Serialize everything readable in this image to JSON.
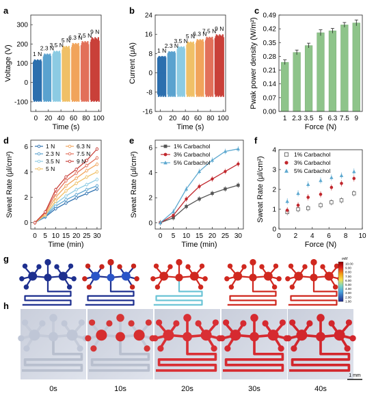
{
  "panel_letters": {
    "a": "a",
    "b": "b",
    "c": "c",
    "d": "d",
    "e": "e",
    "f": "f",
    "g": "g",
    "h": "h"
  },
  "force_labels": [
    "1 N",
    "2.3 N",
    "3.5 N",
    "5 N",
    "6.3 N",
    "7.5 N",
    "9 N"
  ],
  "force_colors": [
    "#2c6fae",
    "#5aa2cf",
    "#8ccbe3",
    "#f0c067",
    "#f1a45b",
    "#e2705a",
    "#c94039"
  ],
  "time_labels": [
    "0s",
    "10s",
    "20s",
    "30s",
    "40s"
  ],
  "scale_bar_label": "1 mm",
  "colorbar": {
    "unit": "mM",
    "ticks": [
      "10.00",
      "9.00",
      "8.00",
      "7.00",
      "6.00",
      "5.00",
      "4.00",
      "3.00",
      "2.00",
      "1.00"
    ]
  },
  "chart_data": [
    {
      "id": "a",
      "type": "bar",
      "title": "",
      "xlabel": "Time (s)",
      "ylabel": "Voltage (V)",
      "xlim": [
        -8,
        104
      ],
      "ylim": [
        -150,
        350
      ],
      "xticks": [
        0,
        20,
        40,
        60,
        80,
        100
      ],
      "yticks": [
        -100,
        0,
        100,
        200,
        300
      ],
      "segments": [
        {
          "label": "1 N",
          "x": [
            -4,
            9
          ],
          "peak": 120,
          "min": -100
        },
        {
          "label": "2.3 N",
          "x": [
            12,
            24
          ],
          "peak": 150,
          "min": -100
        },
        {
          "label": "3.5 N",
          "x": [
            27,
            39
          ],
          "peak": 165,
          "min": -100
        },
        {
          "label": "5 N",
          "x": [
            42,
            54
          ],
          "peak": 190,
          "min": -100
        },
        {
          "label": "6.3 N",
          "x": [
            57,
            69
          ],
          "peak": 205,
          "min": -100
        },
        {
          "label": "7.5 N",
          "x": [
            72,
            84
          ],
          "peak": 215,
          "min": -100
        },
        {
          "label": "9 N",
          "x": [
            87,
            101
          ],
          "peak": 235,
          "min": -100
        }
      ]
    },
    {
      "id": "b",
      "type": "bar",
      "title": "",
      "xlabel": "Time (s)",
      "ylabel": "Current (μA)",
      "xlim": [
        -8,
        104
      ],
      "ylim": [
        -16,
        24
      ],
      "xticks": [
        0,
        20,
        40,
        60,
        80,
        100
      ],
      "yticks": [
        -16,
        -8,
        0,
        8,
        16,
        24
      ],
      "segments": [
        {
          "label": "1 N",
          "x": [
            -4,
            9
          ],
          "peak": 7,
          "min": -10
        },
        {
          "label": "2.3 N",
          "x": [
            12,
            24
          ],
          "peak": 9,
          "min": -10
        },
        {
          "label": "3.5 N",
          "x": [
            27,
            39
          ],
          "peak": 11,
          "min": -10
        },
        {
          "label": "5 N",
          "x": [
            42,
            54
          ],
          "peak": 13,
          "min": -10
        },
        {
          "label": "6.3 N",
          "x": [
            57,
            69
          ],
          "peak": 14,
          "min": -10
        },
        {
          "label": "7.5 N",
          "x": [
            72,
            84
          ],
          "peak": 15,
          "min": -10
        },
        {
          "label": "9 N",
          "x": [
            87,
            101
          ],
          "peak": 16,
          "min": -10
        }
      ]
    },
    {
      "id": "c",
      "type": "bar",
      "title": "",
      "xlabel": "Force (N)",
      "ylabel": "Pwak power density (W/m²)",
      "categories": [
        "1",
        "2.3",
        "3.5",
        "5",
        "6.3",
        "7.5",
        "9"
      ],
      "values": [
        0.25,
        0.3,
        0.335,
        0.4,
        0.41,
        0.44,
        0.45
      ],
      "errors": [
        0.012,
        0.012,
        0.012,
        0.015,
        0.012,
        0.012,
        0.015
      ],
      "ylim": [
        0,
        0.49
      ],
      "yticks": [
        0.0,
        0.07,
        0.14,
        0.21,
        0.28,
        0.35,
        0.42,
        0.49
      ],
      "color": "#8ec48a"
    },
    {
      "id": "d",
      "type": "line",
      "title": "",
      "xlabel": "Time (min)",
      "ylabel": "Sweat Rate (μl/cm²)",
      "x": [
        0,
        5,
        10,
        15,
        20,
        25,
        30
      ],
      "xlim": [
        -2,
        32
      ],
      "ylim": [
        -0.5,
        6.5
      ],
      "yticks": [
        0,
        2,
        4,
        6
      ],
      "series": [
        {
          "name": "1 N",
          "values": [
            0,
            0.45,
            1.1,
            1.55,
            1.95,
            2.3,
            2.65
          ]
        },
        {
          "name": "2.3 N",
          "values": [
            0,
            0.5,
            1.3,
            1.8,
            2.2,
            2.6,
            2.9
          ]
        },
        {
          "name": "3.5 N",
          "values": [
            0,
            0.55,
            1.5,
            2.1,
            2.6,
            3.0,
            3.4
          ]
        },
        {
          "name": "5 N",
          "values": [
            0,
            0.6,
            1.7,
            2.5,
            3.1,
            3.6,
            4.0
          ]
        },
        {
          "name": "6.3 N",
          "values": [
            0,
            0.7,
            2.0,
            2.9,
            3.5,
            4.1,
            4.6
          ]
        },
        {
          "name": "7.5 N",
          "values": [
            0,
            0.8,
            2.3,
            3.3,
            3.9,
            4.5,
            5.1
          ]
        },
        {
          "name": "9 N",
          "values": [
            0,
            0.85,
            2.6,
            3.6,
            4.2,
            4.9,
            5.8
          ]
        }
      ]
    },
    {
      "id": "e",
      "type": "line",
      "title": "",
      "xlabel": "Time (min)",
      "ylabel": "Sweat Rate (μl/cm²)",
      "x": [
        0,
        5,
        10,
        15,
        20,
        25,
        30
      ],
      "xlim": [
        -2,
        32
      ],
      "ylim": [
        -0.5,
        6.6
      ],
      "yticks": [
        0,
        2,
        4,
        6
      ],
      "series": [
        {
          "name": "1% Carbachol",
          "color": "#555555",
          "marker": "square",
          "values": [
            0,
            0.4,
            1.3,
            1.9,
            2.35,
            2.7,
            3.0
          ]
        },
        {
          "name": "3% Carbachol",
          "color": "#c1272d",
          "marker": "circle",
          "values": [
            0,
            0.6,
            1.9,
            2.9,
            3.5,
            4.1,
            4.7
          ]
        },
        {
          "name": "5% Carbachol",
          "color": "#5ea9d0",
          "marker": "triangle",
          "values": [
            0,
            0.9,
            2.7,
            4.1,
            5.0,
            5.7,
            5.9
          ]
        }
      ]
    },
    {
      "id": "f",
      "type": "scatter",
      "title": "",
      "xlabel": "Force (N)",
      "ylabel": "Sweat Rate (μl/cm²)",
      "xlim": [
        0,
        10
      ],
      "ylim": [
        0,
        4
      ],
      "xticks": [
        0,
        2,
        4,
        6,
        8,
        10
      ],
      "yticks": [
        0,
        1,
        2,
        3,
        4
      ],
      "series": [
        {
          "name": "1% Carbachol",
          "color": "#555555",
          "marker": "square-open",
          "x": [
            1,
            2.3,
            3.5,
            5,
            6.3,
            7.5,
            9
          ],
          "values": [
            0.85,
            1.0,
            1.05,
            1.2,
            1.35,
            1.45,
            1.8
          ]
        },
        {
          "name": "3% Carbachol",
          "color": "#c1272d",
          "marker": "circle",
          "x": [
            1,
            2.3,
            3.5,
            5,
            6.3,
            7.5,
            9
          ],
          "values": [
            0.95,
            1.2,
            1.6,
            1.75,
            2.1,
            2.3,
            2.55
          ]
        },
        {
          "name": "5% Carbachol",
          "color": "#5ea9d0",
          "marker": "triangle",
          "x": [
            1,
            2.3,
            3.5,
            5,
            6.3,
            7.5,
            9
          ],
          "values": [
            1.4,
            1.8,
            2.25,
            2.45,
            2.6,
            2.7,
            2.9
          ]
        }
      ]
    }
  ]
}
